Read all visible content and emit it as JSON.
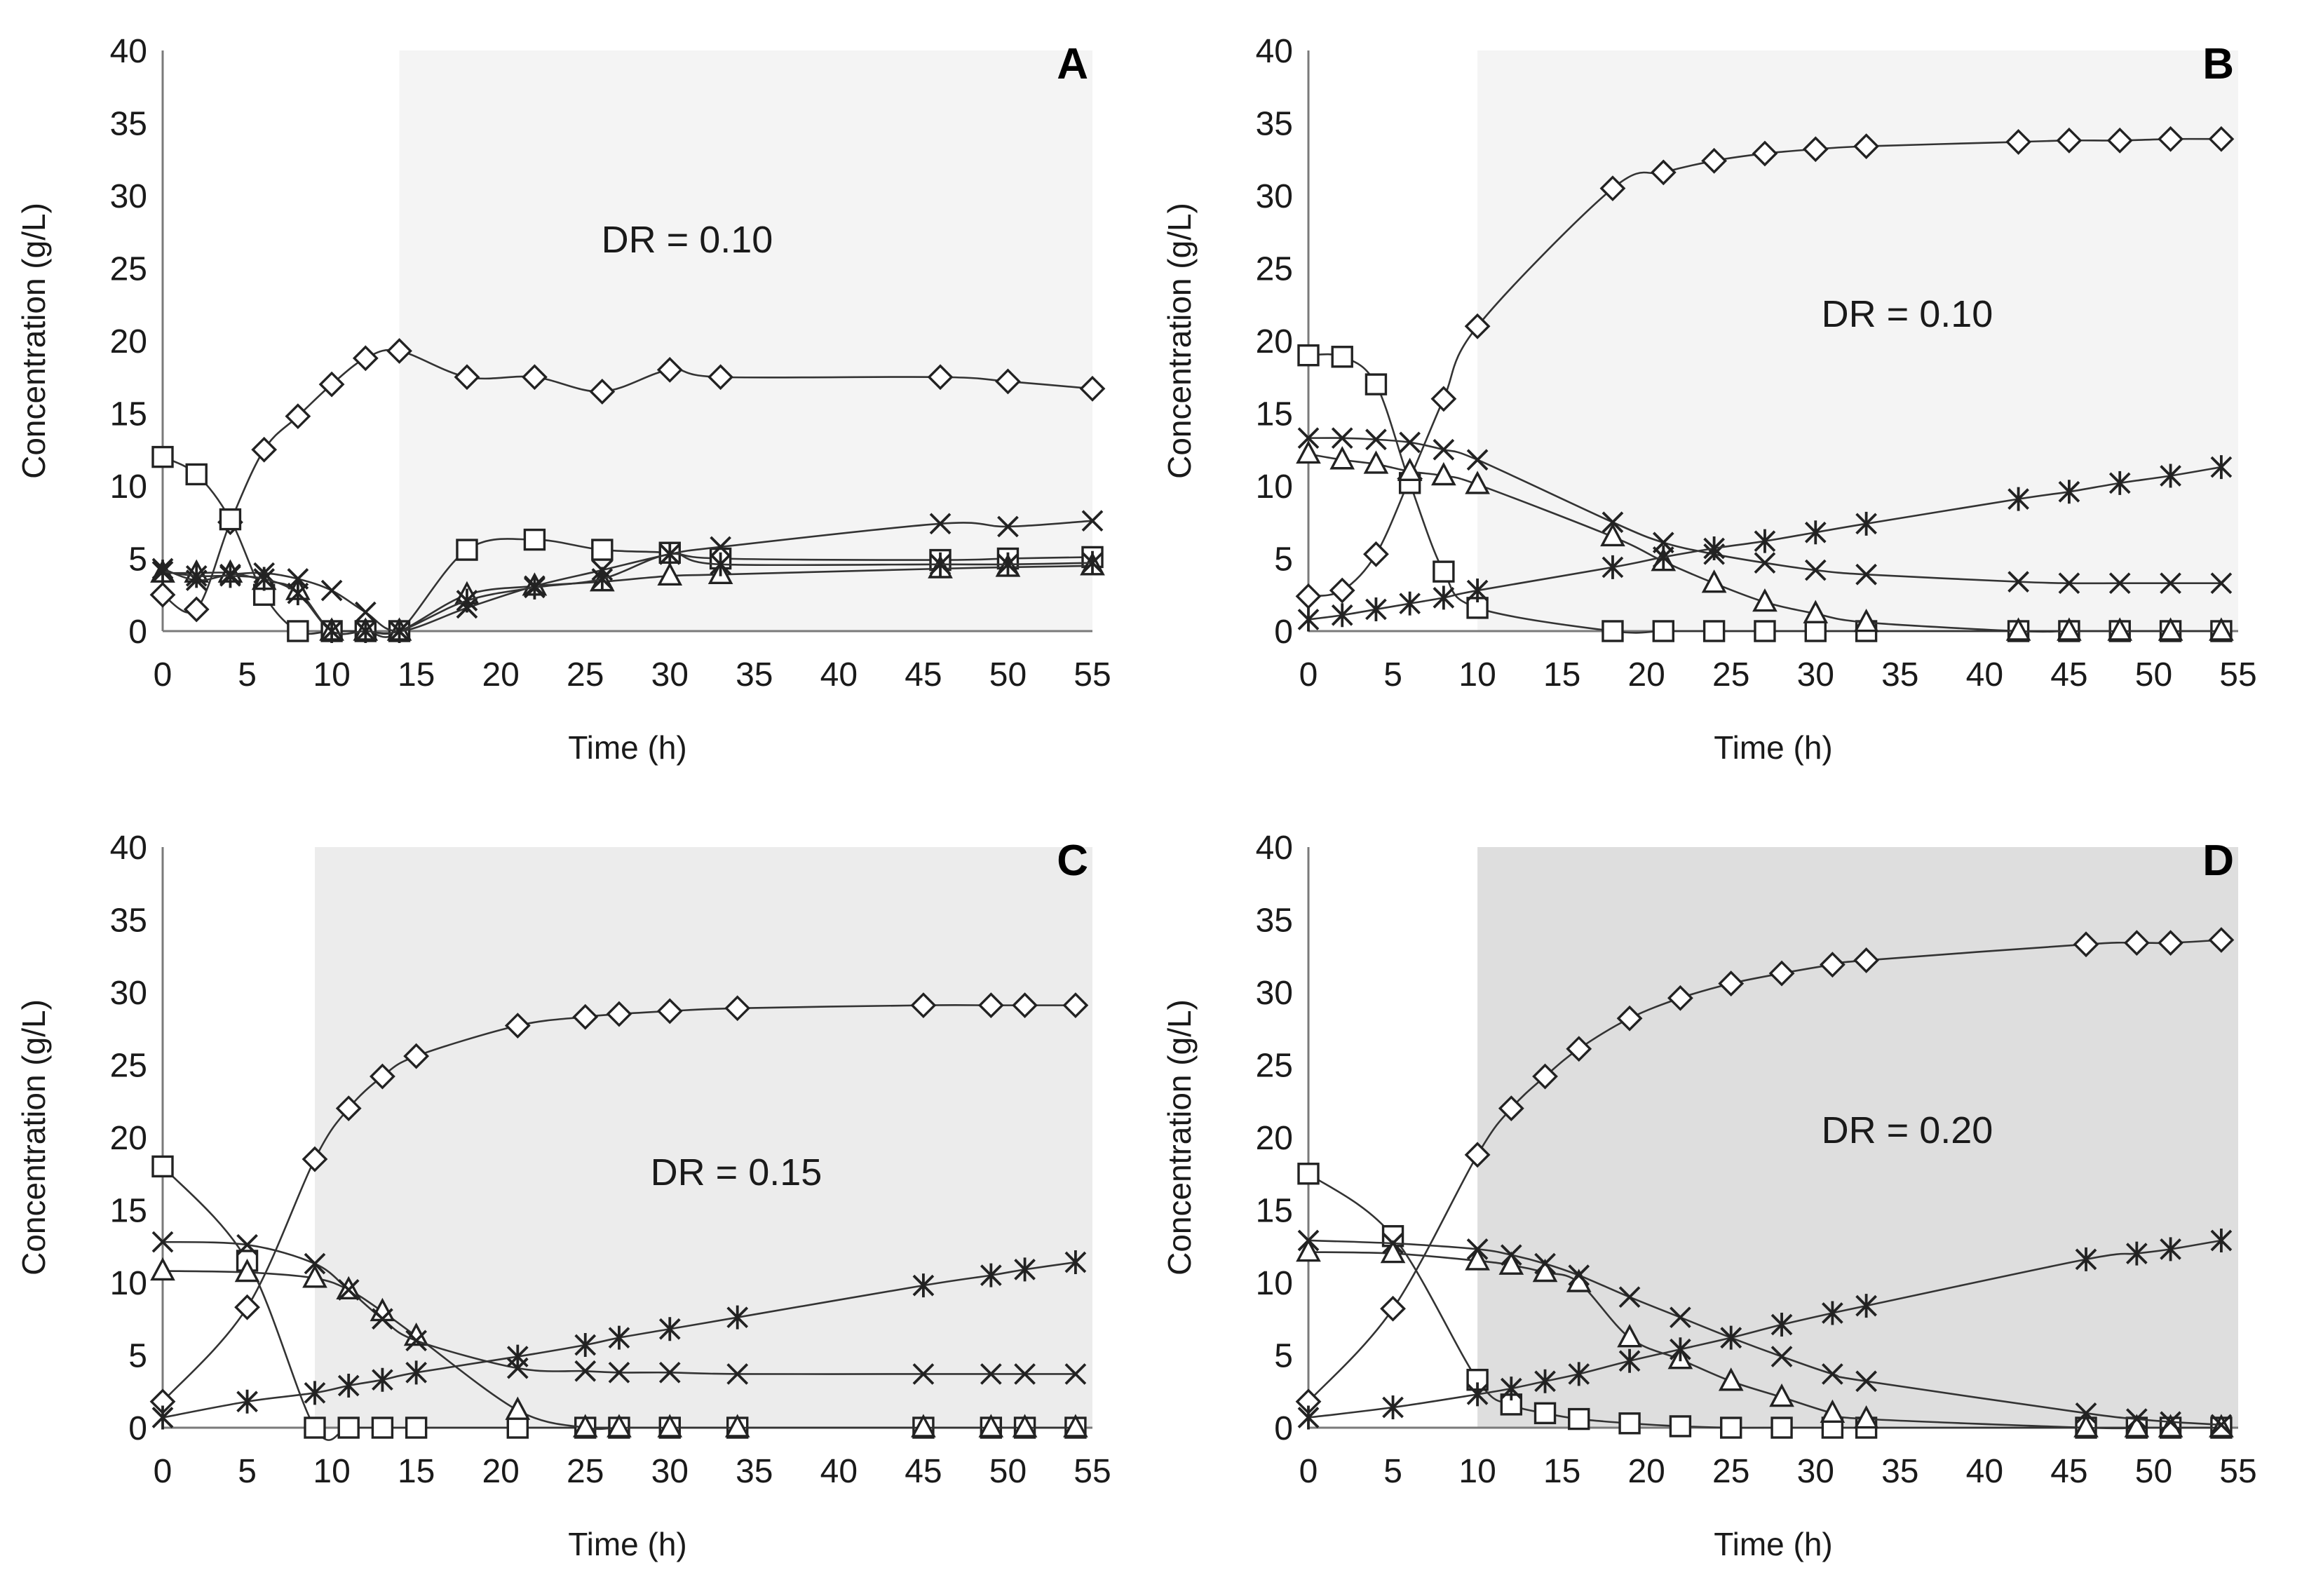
{
  "chart_data": [
    {
      "type": "line",
      "panel_label": "A",
      "annotation": "DR = 0.10",
      "shade_start": 14,
      "shade_color": "#f4f4f4",
      "xlabel": "Time (h)",
      "ylabel": "Concentration (g/L)",
      "xlim": [
        0,
        55
      ],
      "ylim": [
        0,
        40
      ],
      "xticks": [
        "0",
        "5",
        "10",
        "15",
        "20",
        "25",
        "30",
        "35",
        "40",
        "45",
        "50",
        "55"
      ],
      "yticks": [
        "0",
        "5",
        "10",
        "15",
        "20",
        "25",
        "30",
        "35",
        "40"
      ],
      "grid": false,
      "series": [
        {
          "marker": "diamond",
          "x": [
            0,
            2,
            4,
            6,
            8,
            10,
            12,
            14,
            18,
            22,
            26,
            30,
            33,
            46,
            50,
            55
          ],
          "y": [
            2.5,
            1.5,
            7.5,
            12.5,
            14.8,
            17,
            18.8,
            19.3,
            17.5,
            17.5,
            16.5,
            18,
            17.5,
            17.5,
            17.2,
            16.7
          ]
        },
        {
          "marker": "square",
          "x": [
            0,
            2,
            4,
            6,
            8,
            10,
            12,
            14,
            18,
            22,
            26,
            30,
            33,
            46,
            50,
            55
          ],
          "y": [
            12,
            10.8,
            7.7,
            2.5,
            0,
            0,
            0,
            0,
            5.6,
            6.3,
            5.6,
            5.4,
            5,
            4.9,
            5,
            5.1
          ]
        },
        {
          "marker": "triangle",
          "x": [
            0,
            2,
            4,
            6,
            8,
            10,
            12,
            14,
            18,
            22,
            26,
            30,
            33,
            46,
            50,
            55
          ],
          "y": [
            4,
            4,
            4,
            3.5,
            2.8,
            0,
            0,
            0,
            2.5,
            3.1,
            3.4,
            3.8,
            3.9,
            4.3,
            4.4,
            4.5
          ]
        },
        {
          "marker": "x",
          "x": [
            0,
            2,
            4,
            6,
            8,
            10,
            12,
            14,
            18,
            22,
            26,
            30,
            33,
            46,
            50,
            55
          ],
          "y": [
            4.3,
            3.5,
            3.9,
            4,
            3.6,
            2.8,
            1.3,
            0,
            1.6,
            3.1,
            4.2,
            5.3,
            5.8,
            7.4,
            7.2,
            7.6
          ]
        },
        {
          "marker": "star",
          "x": [
            0,
            2,
            4,
            6,
            8,
            10,
            12,
            14,
            18,
            22,
            26,
            30,
            33,
            46,
            50,
            55
          ],
          "y": [
            4.1,
            3.8,
            3.8,
            3.6,
            2.6,
            0,
            0,
            0,
            2.1,
            3,
            3.6,
            5.3,
            4.6,
            4.6,
            4.6,
            4.7
          ]
        }
      ]
    },
    {
      "type": "line",
      "panel_label": "B",
      "annotation": "DR = 0.10",
      "shade_start": 10,
      "shade_color": "#f4f4f4",
      "xlabel": "Time (h)",
      "ylabel": "Concentration (g/L)",
      "xlim": [
        0,
        55
      ],
      "ylim": [
        0,
        40
      ],
      "xticks": [
        "0",
        "5",
        "10",
        "15",
        "20",
        "25",
        "30",
        "35",
        "40",
        "45",
        "50",
        "55"
      ],
      "yticks": [
        "0",
        "5",
        "10",
        "15",
        "20",
        "25",
        "30",
        "35",
        "40"
      ],
      "grid": false,
      "series": [
        {
          "marker": "diamond",
          "x": [
            0,
            2,
            4,
            6,
            8,
            10,
            18,
            21,
            24,
            27,
            30,
            33,
            42,
            45,
            48,
            51,
            54
          ],
          "y": [
            2.4,
            2.8,
            5.3,
            10.5,
            16,
            21,
            30.5,
            31.6,
            32.4,
            32.9,
            33.2,
            33.4,
            33.7,
            33.8,
            33.8,
            33.9,
            33.9
          ]
        },
        {
          "marker": "square",
          "x": [
            0,
            2,
            4,
            6,
            8,
            10,
            18,
            21,
            24,
            27,
            30,
            33,
            42,
            45,
            48,
            51,
            54
          ],
          "y": [
            19,
            18.9,
            17,
            10.2,
            4.1,
            1.6,
            0,
            0,
            0,
            0,
            0,
            0,
            0,
            0,
            0,
            0,
            0
          ]
        },
        {
          "marker": "triangle",
          "x": [
            0,
            2,
            4,
            6,
            8,
            10,
            18,
            21,
            24,
            27,
            30,
            33,
            42,
            45,
            48,
            51,
            54
          ],
          "y": [
            12.2,
            11.8,
            11.5,
            11,
            10.7,
            10.1,
            6.5,
            4.8,
            3.3,
            2,
            1.2,
            0.6,
            0,
            0,
            0,
            0,
            0
          ]
        },
        {
          "marker": "x",
          "x": [
            0,
            2,
            4,
            6,
            8,
            10,
            18,
            21,
            24,
            27,
            30,
            33,
            42,
            45,
            48,
            51,
            54
          ],
          "y": [
            13.3,
            13.3,
            13.2,
            13,
            12.5,
            11.8,
            7.5,
            6.1,
            5.3,
            4.7,
            4.2,
            3.9,
            3.4,
            3.3,
            3.3,
            3.3,
            3.3
          ]
        },
        {
          "marker": "star",
          "x": [
            0,
            2,
            4,
            6,
            8,
            10,
            18,
            21,
            24,
            27,
            30,
            33,
            42,
            45,
            48,
            51,
            54
          ],
          "y": [
            0.8,
            1.1,
            1.5,
            1.9,
            2.3,
            2.8,
            4.4,
            5.1,
            5.7,
            6.2,
            6.8,
            7.4,
            9.1,
            9.6,
            10.2,
            10.7,
            11.3
          ]
        }
      ]
    },
    {
      "type": "line",
      "panel_label": "C",
      "annotation": "DR = 0.15",
      "shade_start": 9,
      "shade_color": "#ececec",
      "xlabel": "Time (h)",
      "ylabel": "Concentration (g/L)",
      "xlim": [
        0,
        55
      ],
      "ylim": [
        0,
        40
      ],
      "xticks": [
        "0",
        "5",
        "10",
        "15",
        "20",
        "25",
        "30",
        "35",
        "40",
        "45",
        "50",
        "55"
      ],
      "yticks": [
        "0",
        "5",
        "10",
        "15",
        "20",
        "25",
        "30",
        "35",
        "40"
      ],
      "grid": false,
      "series": [
        {
          "marker": "diamond",
          "x": [
            0,
            5,
            9,
            11,
            13,
            15,
            21,
            25,
            27,
            30,
            34,
            45,
            49,
            51,
            54
          ],
          "y": [
            1.8,
            8.3,
            18.5,
            22,
            24.2,
            25.6,
            27.7,
            28.3,
            28.5,
            28.7,
            28.9,
            29.1,
            29.1,
            29.1,
            29.1
          ]
        },
        {
          "marker": "square",
          "x": [
            0,
            5,
            9,
            11,
            13,
            15,
            21,
            25,
            27,
            30,
            34,
            45,
            49,
            51,
            54
          ],
          "y": [
            18,
            11.5,
            0,
            0,
            0,
            0,
            0,
            0,
            0,
            0,
            0,
            0,
            0,
            0,
            0
          ]
        },
        {
          "marker": "triangle",
          "x": [
            0,
            5,
            9,
            11,
            13,
            15,
            21,
            25,
            27,
            30,
            34,
            45,
            49,
            51,
            54
          ],
          "y": [
            10.8,
            10.7,
            10.3,
            9.5,
            8,
            6.3,
            1.2,
            0,
            0,
            0,
            0,
            0,
            0,
            0,
            0
          ]
        },
        {
          "marker": "x",
          "x": [
            0,
            5,
            9,
            11,
            13,
            15,
            21,
            25,
            27,
            30,
            34,
            45,
            49,
            51,
            54
          ],
          "y": [
            12.8,
            12.6,
            11.3,
            9.5,
            7.5,
            6,
            4.1,
            3.9,
            3.8,
            3.8,
            3.7,
            3.7,
            3.7,
            3.7,
            3.7
          ]
        },
        {
          "marker": "star",
          "x": [
            0,
            5,
            9,
            11,
            13,
            15,
            21,
            25,
            27,
            30,
            34,
            45,
            49,
            51,
            54
          ],
          "y": [
            0.7,
            1.8,
            2.4,
            2.9,
            3.3,
            3.8,
            4.9,
            5.7,
            6.2,
            6.8,
            7.6,
            9.8,
            10.5,
            10.9,
            11.4
          ]
        }
      ]
    },
    {
      "type": "line",
      "panel_label": "D",
      "annotation": "DR = 0.20",
      "shade_start": 10,
      "shade_color": "#dedede",
      "xlabel": "Time (h)",
      "ylabel": "Concentration (g/L)",
      "xlim": [
        0,
        55
      ],
      "ylim": [
        0,
        40
      ],
      "xticks": [
        "0",
        "5",
        "10",
        "15",
        "20",
        "25",
        "30",
        "35",
        "40",
        "45",
        "50",
        "55"
      ],
      "yticks": [
        "0",
        "5",
        "10",
        "15",
        "20",
        "25",
        "30",
        "35",
        "40"
      ],
      "grid": false,
      "series": [
        {
          "marker": "diamond",
          "x": [
            0,
            5,
            10,
            12,
            14,
            16,
            19,
            22,
            25,
            28,
            31,
            33,
            46,
            49,
            51,
            54
          ],
          "y": [
            1.8,
            8.2,
            18.8,
            22,
            24.2,
            26.1,
            28.2,
            29.6,
            30.6,
            31.3,
            31.9,
            32.2,
            33.3,
            33.4,
            33.4,
            33.6
          ]
        },
        {
          "marker": "square",
          "x": [
            0,
            5,
            10,
            12,
            14,
            16,
            19,
            22,
            25,
            28,
            31,
            33,
            46,
            49,
            51,
            54
          ],
          "y": [
            17.5,
            13.2,
            3.3,
            1.6,
            1,
            0.6,
            0.3,
            0.1,
            0,
            0,
            0,
            0,
            0,
            0,
            0,
            0
          ]
        },
        {
          "marker": "triangle",
          "x": [
            0,
            5,
            10,
            12,
            14,
            16,
            19,
            22,
            25,
            28,
            31,
            33,
            46,
            49,
            51,
            54
          ],
          "y": [
            12.1,
            12,
            11.5,
            11.2,
            10.7,
            10,
            6.2,
            4.7,
            3.2,
            2.1,
            1,
            0.6,
            0,
            0,
            0,
            0
          ]
        },
        {
          "marker": "x",
          "x": [
            0,
            5,
            10,
            12,
            14,
            16,
            19,
            22,
            25,
            28,
            31,
            33,
            46,
            49,
            51,
            54
          ],
          "y": [
            12.9,
            12.7,
            12.3,
            11.9,
            11.3,
            10.5,
            9,
            7.6,
            6.2,
            4.9,
            3.7,
            3.2,
            1,
            0.6,
            0.4,
            0.2
          ]
        },
        {
          "marker": "star",
          "x": [
            0,
            5,
            10,
            12,
            14,
            16,
            19,
            22,
            25,
            28,
            31,
            33,
            46,
            49,
            51,
            54
          ],
          "y": [
            0.7,
            1.4,
            2.3,
            2.7,
            3.2,
            3.7,
            4.6,
            5.4,
            6.2,
            7.1,
            7.9,
            8.4,
            11.6,
            12,
            12.3,
            12.9
          ]
        }
      ]
    }
  ]
}
